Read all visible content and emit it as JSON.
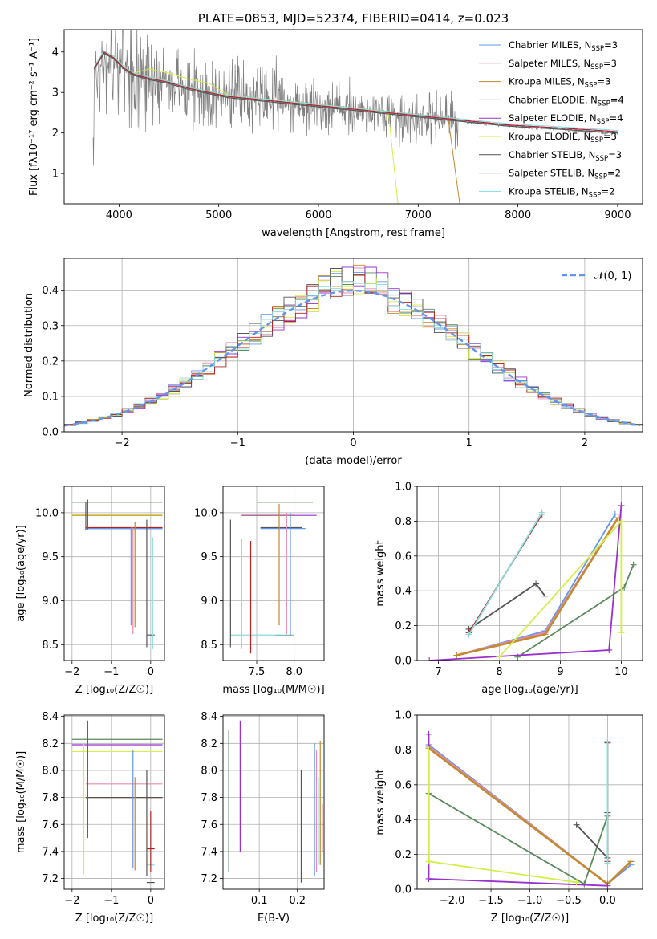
{
  "colors": [
    "#6495ed",
    "#e88ab0",
    "#c48a2e",
    "#5b8a5b",
    "#9932cc",
    "#d4ee4a",
    "#555555",
    "#b22222",
    "#88dcdc"
  ],
  "chart_data": [
    {
      "id": "spectrum",
      "type": "line",
      "title": "PLATE=0853, MJD=52374, FIBERID=0414, z=0.023",
      "xlabel": "wavelength [Angstrom, rest frame]",
      "ylabel": "Flux [f$_\\lambda$10$^{-17}$ erg cm$^{-2}$ s$^{-1}$ A$^{-1}$]",
      "ylabel_display": "Flux [fλ10⁻¹⁷ erg cm⁻² s⁻¹ A⁻¹]",
      "xlim": [
        3450,
        9250
      ],
      "ylim": [
        0.25,
        4.55
      ],
      "xticks": [
        "4000",
        "5000",
        "6000",
        "7000",
        "8000",
        "9000"
      ],
      "xtick_vals": [
        4000,
        5000,
        6000,
        7000,
        8000,
        9000
      ],
      "yticks": [
        "1",
        "2",
        "3",
        "4"
      ],
      "ytick_vals": [
        1,
        2,
        3,
        4
      ],
      "legend_position": "top-right",
      "data_series": {
        "name": "data",
        "color": "#808080",
        "x": [
          3750,
          3850,
          4000,
          4200,
          4400,
          4600,
          4800,
          5000,
          5200,
          5400,
          5600,
          5800,
          6000,
          6200,
          6400,
          6600,
          6800,
          7000,
          7200,
          7400,
          7600,
          7800,
          8000,
          8200,
          8400,
          8600,
          8800,
          9000
        ],
        "y": [
          3.3,
          3.8,
          3.7,
          3.4,
          3.3,
          3.2,
          3.05,
          2.95,
          2.85,
          2.8,
          2.75,
          2.7,
          2.65,
          2.6,
          2.55,
          2.5,
          2.45,
          2.4,
          2.35,
          2.3,
          2.25,
          2.2,
          2.15,
          2.12,
          2.1,
          2.05,
          2.02,
          2.0
        ]
      },
      "series": [
        {
          "name": "Chabrier MILES, N$_{SSP}$=3",
          "label": "Chabrier MILES, N",
          "sub": "SSP",
          "suffix": "=3"
        },
        {
          "name": "Salpeter MILES, N$_{SSP}$=3",
          "label": "Salpeter MILES, N",
          "sub": "SSP",
          "suffix": "=3"
        },
        {
          "name": "Kroupa MILES, N$_{SSP}$=3",
          "label": "Kroupa MILES, N",
          "sub": "SSP",
          "suffix": "=3"
        },
        {
          "name": "Chabrier ELODIE, N$_{SSP}$=4",
          "label": "Chabrier ELODIE, N",
          "sub": "SSP",
          "suffix": "=4"
        },
        {
          "name": "Salpeter ELODIE, N$_{SSP}$=4",
          "label": "Salpeter ELODIE, N",
          "sub": "SSP",
          "suffix": "=4"
        },
        {
          "name": "Kroupa ELODIE, N$_{SSP}$=3",
          "label": "Kroupa ELODIE, N",
          "sub": "SSP",
          "suffix": "=3"
        },
        {
          "name": "Chabrier STELIB, N$_{SSP}$=3",
          "label": "Chabrier STELIB, N",
          "sub": "SSP",
          "suffix": "=3"
        },
        {
          "name": "Salpeter STELIB, N$_{SSP}$=2",
          "label": "Salpeter STELIB, N",
          "sub": "SSP",
          "suffix": "=2"
        },
        {
          "name": "Kroupa STELIB, N$_{SSP}$=2",
          "label": "Kroupa STELIB, N",
          "sub": "SSP",
          "suffix": "=2"
        }
      ],
      "model_x": [
        3750,
        3850,
        3950,
        4050,
        4150,
        4300,
        4500,
        4700,
        4900,
        5100,
        5300,
        5500,
        5700,
        5900,
        6100,
        6300,
        6500,
        6700,
        6900,
        7100,
        7300,
        7500,
        7700,
        7900,
        8100,
        8300,
        8500,
        8700,
        8900,
        9000
      ],
      "model_y": [
        3.6,
        4.0,
        3.85,
        3.6,
        3.45,
        3.35,
        3.25,
        3.1,
        3.0,
        2.9,
        2.85,
        2.8,
        2.75,
        2.7,
        2.65,
        2.6,
        2.55,
        2.5,
        2.45,
        2.4,
        2.35,
        2.3,
        2.25,
        2.2,
        2.17,
        2.14,
        2.11,
        2.08,
        2.05,
        2.03
      ],
      "model_ranges": [
        [
          3700,
          9000
        ],
        [
          3700,
          9000
        ],
        [
          3700,
          7420
        ],
        [
          3700,
          9000
        ],
        [
          3700,
          9000
        ],
        [
          3700,
          6800
        ],
        [
          3700,
          9000
        ],
        [
          3700,
          9000
        ],
        [
          3700,
          9000
        ]
      ]
    },
    {
      "id": "residuals",
      "type": "histogram",
      "xlabel": "(data-model)/error",
      "ylabel": "Normed distribution",
      "xlim": [
        -2.5,
        2.5
      ],
      "ylim": [
        0,
        0.49
      ],
      "xticks": [
        "−2",
        "−1",
        "0",
        "1",
        "2"
      ],
      "xtick_vals": [
        -2,
        -1,
        0,
        1,
        2
      ],
      "yticks": [
        "0.0",
        "0.1",
        "0.2",
        "0.3",
        "0.4"
      ],
      "ytick_vals": [
        0,
        0.1,
        0.2,
        0.3,
        0.4
      ],
      "grid": true,
      "legend_position": "top-right",
      "reference_curve": {
        "name": "$\\mathcal{N}(0,1)$",
        "label": "𝒩(0, 1)",
        "color": "#6495ed",
        "mean": 0,
        "sigma": 1
      },
      "bin_width": 0.1
    },
    {
      "id": "age_vs_Z",
      "type": "errorbar",
      "xlabel": "Z [log$_{10}$(Z/Z$_\\odot$)]",
      "xlabel_display": "Z [log₁₀(Z/Z☉)]",
      "ylabel": "age  [log$_{10}$(age/yr)]",
      "ylabel_display": "age  [log₁₀(age/yr)]",
      "xlim": [
        -2.2,
        0.35
      ],
      "ylim": [
        8.32,
        10.3
      ],
      "xticks": [
        "−2",
        "−1",
        "0"
      ],
      "xtick_vals": [
        -2,
        -1,
        0
      ],
      "yticks": [
        "8.5",
        "9.0",
        "9.5",
        "10.0"
      ],
      "ytick_vals": [
        8.5,
        9.0,
        9.5,
        10.0
      ],
      "grid": true,
      "hbars": [
        [
          -2.0,
          0.3,
          10.12,
          3
        ],
        [
          -2.0,
          0.3,
          9.97,
          2
        ],
        [
          -2.0,
          0.3,
          9.98,
          5
        ],
        [
          -1.65,
          0.3,
          9.82,
          6
        ],
        [
          -1.65,
          0.3,
          9.83,
          7
        ],
        [
          -1.65,
          0.3,
          9.82,
          1
        ],
        [
          -1.65,
          0.3,
          9.82,
          0
        ],
        [
          -0.1,
          0.1,
          8.61,
          6
        ],
        [
          -0.1,
          0.1,
          8.6,
          8
        ]
      ],
      "vbars": [
        [
          -1.6,
          9.81,
          10.15,
          4
        ],
        [
          -1.65,
          9.8,
          10.12,
          6
        ],
        [
          -0.5,
          8.72,
          9.83,
          0
        ],
        [
          -0.45,
          8.62,
          9.83,
          1
        ],
        [
          -0.4,
          8.7,
          9.9,
          2
        ],
        [
          -0.1,
          8.47,
          9.92,
          6
        ],
        [
          0.05,
          8.45,
          9.72,
          8
        ]
      ]
    },
    {
      "id": "age_vs_mass",
      "type": "errorbar",
      "xlabel": "mass [log$_{10}$(M/M$_\\odot$)]",
      "xlabel_display": "mass [log₁₀(M/M☉)]",
      "xlim": [
        7.05,
        8.4
      ],
      "ylim": [
        8.32,
        10.3
      ],
      "xticks": [
        "7.5",
        "8.0"
      ],
      "xtick_vals": [
        7.5,
        8.0
      ],
      "yticks": [
        "8.5",
        "9.0",
        "9.5",
        "10.0"
      ],
      "ytick_vals": [
        8.5,
        9.0,
        9.5,
        10.0
      ],
      "grid": true,
      "hbars": [
        [
          7.5,
          8.25,
          10.12,
          3
        ],
        [
          7.3,
          8.3,
          9.97,
          4
        ],
        [
          7.3,
          8.0,
          9.98,
          5
        ],
        [
          7.55,
          8.1,
          9.83,
          6
        ],
        [
          7.55,
          8.15,
          9.82,
          0
        ],
        [
          7.15,
          8.0,
          8.61,
          8
        ],
        [
          7.75,
          8.0,
          8.6,
          6
        ]
      ],
      "vbars": [
        [
          7.15,
          8.47,
          9.92,
          6
        ],
        [
          7.3,
          8.45,
          9.7,
          8
        ],
        [
          7.42,
          8.4,
          9.68,
          7
        ],
        [
          7.8,
          8.72,
          10.1,
          2
        ],
        [
          7.9,
          8.62,
          10.0,
          1
        ],
        [
          7.95,
          8.6,
          10.0,
          0
        ]
      ]
    },
    {
      "id": "mass_weight_vs_age",
      "type": "line",
      "xlabel": "age  [log$_{10}$(age/yr)]",
      "xlabel_display": "age  [log₁₀(age/yr)]",
      "ylabel": "mass weight",
      "xlim": [
        6.65,
        10.35
      ],
      "ylim": [
        0.0,
        1.0
      ],
      "xticks": [
        "7",
        "8",
        "9",
        "10"
      ],
      "xtick_vals": [
        7,
        8,
        9,
        10
      ],
      "yticks": [
        "0.0",
        "0.2",
        "0.4",
        "0.6",
        "0.8",
        "1.0"
      ],
      "ytick_vals": [
        0,
        0.2,
        0.4,
        0.6,
        0.8,
        1.0
      ],
      "grid": true,
      "series": [
        {
          "color": 0,
          "x": [
            7.3,
            8.75,
            9.9
          ],
          "y": [
            0.03,
            0.17,
            0.84
          ]
        },
        {
          "color": 1,
          "x": [
            7.3,
            8.75,
            9.95
          ],
          "y": [
            0.03,
            0.16,
            0.82
          ]
        },
        {
          "color": 2,
          "x": [
            7.3,
            8.75,
            9.95
          ],
          "y": [
            0.03,
            0.15,
            0.82
          ]
        },
        {
          "color": 3,
          "x": [
            8.3,
            10.05,
            10.2
          ],
          "y": [
            0.02,
            0.42,
            0.55
          ]
        },
        {
          "color": 4,
          "x": [
            6.85,
            9.8,
            10.0
          ],
          "y": [
            0.0,
            0.06,
            0.89
          ]
        },
        {
          "color": 5,
          "x": [
            8.0,
            10.0,
            10.0
          ],
          "y": [
            0.02,
            0.8,
            0.16
          ]
        },
        {
          "color": 6,
          "x": [
            7.5,
            8.6,
            8.75
          ],
          "y": [
            0.18,
            0.44,
            0.37
          ]
        },
        {
          "color": 7,
          "x": [
            7.5,
            8.7
          ],
          "y": [
            0.16,
            0.84
          ]
        },
        {
          "color": 8,
          "x": [
            7.5,
            8.7
          ],
          "y": [
            0.15,
            0.85
          ]
        }
      ]
    },
    {
      "id": "mass_vs_Z",
      "type": "errorbar",
      "xlabel": "Z [log$_{10}$(Z/Z$_\\odot$)]",
      "xlabel_display": "Z [log₁₀(Z/Z☉)]",
      "ylabel": "mass [log$_{10}$(M/M$_\\odot$)]",
      "ylabel_display": "mass [log₁₀(M/M☉)]",
      "xlim": [
        -2.2,
        0.35
      ],
      "ylim": [
        7.12,
        8.41
      ],
      "xticks": [
        "−2",
        "−1",
        "0"
      ],
      "xtick_vals": [
        -2,
        -1,
        0
      ],
      "yticks": [
        "7.2",
        "7.4",
        "7.6",
        "7.8",
        "8.0",
        "8.2",
        "8.4"
      ],
      "ytick_vals": [
        7.2,
        7.4,
        7.6,
        7.8,
        8.0,
        8.2,
        8.4
      ],
      "grid": true,
      "hbars": [
        [
          -2.0,
          0.3,
          8.23,
          3
        ],
        [
          -2.0,
          0.3,
          8.19,
          4
        ],
        [
          -2.0,
          0.3,
          8.14,
          5
        ],
        [
          -1.65,
          0.3,
          7.9,
          1
        ],
        [
          -1.65,
          0.3,
          7.8,
          2
        ],
        [
          -1.65,
          0.3,
          7.8,
          6
        ],
        [
          -0.1,
          0.1,
          7.42,
          7
        ],
        [
          -0.1,
          0.1,
          7.3,
          8
        ],
        [
          -0.1,
          0.1,
          7.17,
          6
        ]
      ],
      "vbars": [
        [
          -1.7,
          7.23,
          8.2,
          5
        ],
        [
          -1.6,
          7.5,
          8.37,
          4
        ],
        [
          -0.45,
          7.28,
          8.15,
          0
        ],
        [
          -0.4,
          7.26,
          7.95,
          2
        ],
        [
          -0.1,
          7.22,
          8.0,
          6
        ],
        [
          0.0,
          7.25,
          7.7,
          7
        ]
      ]
    },
    {
      "id": "mass_vs_EBV",
      "type": "errorbar",
      "xlabel": "E(B-V)",
      "xlim": [
        0.005,
        0.27
      ],
      "ylim": [
        7.12,
        8.41
      ],
      "xticks": [
        "0.1",
        "0.2"
      ],
      "xtick_vals": [
        0.1,
        0.2
      ],
      "yticks": [
        "7.2",
        "7.4",
        "7.6",
        "7.8",
        "8.0",
        "8.2",
        "8.4"
      ],
      "ytick_vals": [
        7.2,
        7.4,
        7.6,
        7.8,
        8.0,
        8.2,
        8.4
      ],
      "grid": true,
      "hbars": [],
      "vbars": [
        [
          0.02,
          7.25,
          8.3,
          3
        ],
        [
          0.05,
          7.5,
          8.27,
          5
        ],
        [
          0.05,
          7.4,
          8.37,
          4
        ],
        [
          0.21,
          7.17,
          8.0,
          6
        ],
        [
          0.245,
          7.22,
          8.2,
          0
        ],
        [
          0.25,
          7.25,
          8.15,
          1
        ],
        [
          0.255,
          7.3,
          7.95,
          8
        ],
        [
          0.26,
          7.3,
          8.22,
          2
        ],
        [
          0.265,
          7.4,
          7.75,
          7
        ]
      ]
    },
    {
      "id": "mass_weight_vs_Z",
      "type": "line",
      "xlabel": "Z [log$_{10}$(Z/Z$_\\odot$)]",
      "xlabel_display": "Z [log₁₀(Z/Z☉)]",
      "ylabel": "mass weight",
      "xlim": [
        -2.45,
        0.45
      ],
      "ylim": [
        0.0,
        1.0
      ],
      "xticks": [
        "−2.0",
        "−1.5",
        "−1.0",
        "−0.5",
        "0.0"
      ],
      "xtick_vals": [
        -2.0,
        -1.5,
        -1.0,
        -0.5,
        0.0
      ],
      "yticks": [
        "0.0",
        "0.2",
        "0.4",
        "0.6",
        "0.8",
        "1.0"
      ],
      "ytick_vals": [
        0,
        0.2,
        0.4,
        0.6,
        0.8,
        1.0
      ],
      "grid": true,
      "series": [
        {
          "color": 0,
          "x": [
            -2.3,
            0.0,
            0.3
          ],
          "y": [
            0.83,
            0.03,
            0.14
          ]
        },
        {
          "color": 1,
          "x": [
            -2.3,
            0.0,
            0.3
          ],
          "y": [
            0.82,
            0.03,
            0.16
          ]
        },
        {
          "color": 2,
          "x": [
            -2.3,
            0.0,
            0.3
          ],
          "y": [
            0.81,
            0.03,
            0.16
          ]
        },
        {
          "color": 3,
          "x": [
            -2.3,
            -0.3,
            0.0
          ],
          "y": [
            0.55,
            0.03,
            0.42
          ]
        },
        {
          "color": 4,
          "x": [
            -2.3,
            -2.3,
            0.0
          ],
          "y": [
            0.89,
            0.06,
            0.02
          ]
        },
        {
          "color": 5,
          "x": [
            -2.3,
            -2.3,
            -0.4
          ],
          "y": [
            0.8,
            0.16,
            0.04
          ]
        },
        {
          "color": 6,
          "x": [
            -0.4,
            0.0,
            0.0
          ],
          "y": [
            0.37,
            0.18,
            0.44
          ]
        },
        {
          "color": 7,
          "x": [
            0.0,
            0.0
          ],
          "y": [
            0.16,
            0.84
          ]
        },
        {
          "color": 8,
          "x": [
            0.0,
            0.0
          ],
          "y": [
            0.15,
            0.85
          ]
        }
      ]
    }
  ]
}
